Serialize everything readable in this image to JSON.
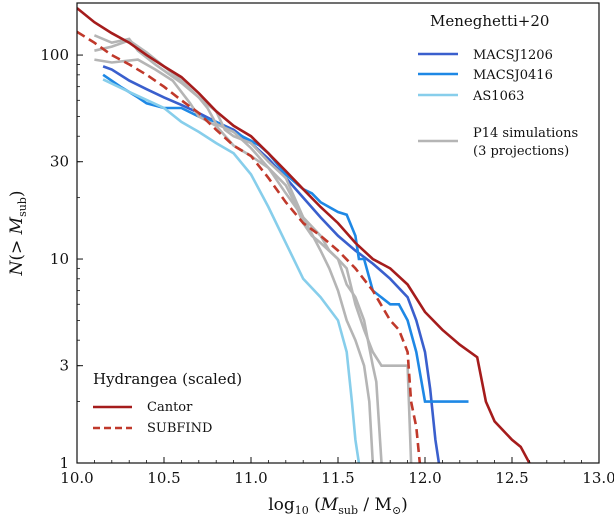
{
  "chart_data": {
    "type": "line",
    "title": "",
    "xlabel": "log₁₀ (M_sub / M⊙)",
    "ylabel": "N(> M_sub)",
    "xlim": [
      10.0,
      13.0
    ],
    "ylim": [
      1,
      180
    ],
    "yscale": "log",
    "grid": false,
    "x_ticks": [
      10.0,
      10.5,
      11.0,
      11.5,
      12.0,
      12.5,
      13.0
    ],
    "x_tick_labels": [
      "10.0",
      "10.5",
      "11.0",
      "11.5",
      "12.0",
      "12.5",
      "13.0"
    ],
    "y_ticks": [
      1,
      3,
      10,
      30,
      100
    ],
    "y_tick_labels": [
      "1",
      "3",
      "10",
      "30",
      "100"
    ],
    "legends": [
      {
        "title": "Meneghetti+20",
        "placement": "top-right",
        "entries": [
          "MACSJ1206",
          "MACSJ0416",
          "AS1063",
          "P14 simulations (3 projections)"
        ]
      },
      {
        "title": "Hydrangea (scaled)",
        "placement": "bottom-left",
        "entries": [
          "Cantor",
          "SUBFIND"
        ]
      }
    ],
    "series": [
      {
        "name": "MACSJ1206",
        "color": "#3a5fcd",
        "style": "solid",
        "points": [
          [
            10.15,
            88
          ],
          [
            10.2,
            85
          ],
          [
            10.3,
            75
          ],
          [
            10.4,
            68
          ],
          [
            10.5,
            62
          ],
          [
            10.6,
            57
          ],
          [
            10.7,
            52
          ],
          [
            10.8,
            47
          ],
          [
            10.9,
            43
          ],
          [
            11.0,
            37
          ],
          [
            11.1,
            31
          ],
          [
            11.2,
            25
          ],
          [
            11.3,
            20
          ],
          [
            11.4,
            16
          ],
          [
            11.5,
            13
          ],
          [
            11.6,
            11
          ],
          [
            11.7,
            9.5
          ],
          [
            11.8,
            8
          ],
          [
            11.9,
            6.5
          ],
          [
            11.95,
            5
          ],
          [
            12.0,
            3.5
          ],
          [
            12.03,
            2.3
          ],
          [
            12.06,
            1.3
          ],
          [
            12.08,
            1
          ]
        ]
      },
      {
        "name": "MACSJ0416",
        "color": "#1e88e5",
        "style": "solid",
        "points": [
          [
            10.15,
            80
          ],
          [
            10.25,
            70
          ],
          [
            10.35,
            62
          ],
          [
            10.4,
            58
          ],
          [
            10.5,
            55
          ],
          [
            10.6,
            55
          ],
          [
            10.7,
            50
          ],
          [
            10.8,
            47
          ],
          [
            10.9,
            42
          ],
          [
            11.0,
            38
          ],
          [
            11.05,
            36
          ],
          [
            11.1,
            33
          ],
          [
            11.2,
            26
          ],
          [
            11.3,
            22
          ],
          [
            11.35,
            21
          ],
          [
            11.4,
            19
          ],
          [
            11.5,
            17
          ],
          [
            11.55,
            16.5
          ],
          [
            11.6,
            13
          ],
          [
            11.62,
            10
          ],
          [
            11.65,
            10
          ],
          [
            11.7,
            7
          ],
          [
            11.8,
            6
          ],
          [
            11.85,
            6
          ],
          [
            11.9,
            5
          ],
          [
            11.95,
            3.5
          ],
          [
            12.0,
            2
          ],
          [
            12.25,
            2
          ]
        ]
      },
      {
        "name": "AS1063",
        "color": "#87ceeb",
        "style": "solid",
        "points": [
          [
            10.15,
            76
          ],
          [
            10.3,
            66
          ],
          [
            10.5,
            55
          ],
          [
            10.6,
            47
          ],
          [
            10.7,
            42
          ],
          [
            10.8,
            37
          ],
          [
            10.9,
            33
          ],
          [
            11.0,
            26
          ],
          [
            11.1,
            18
          ],
          [
            11.2,
            12
          ],
          [
            11.3,
            8
          ],
          [
            11.4,
            6.5
          ],
          [
            11.5,
            5
          ],
          [
            11.55,
            3.5
          ],
          [
            11.58,
            2
          ],
          [
            11.6,
            1.3
          ],
          [
            11.62,
            1
          ]
        ]
      },
      {
        "name": "P14 simulations (3 projections)",
        "color": "#b5b5b5",
        "style": "solid",
        "points": [
          [
            10.1,
            125
          ],
          [
            10.2,
            115
          ],
          [
            10.3,
            120
          ],
          [
            10.35,
            105
          ],
          [
            10.45,
            90
          ],
          [
            10.6,
            73
          ],
          [
            10.7,
            62
          ],
          [
            10.8,
            53
          ],
          [
            10.85,
            43
          ],
          [
            10.9,
            40
          ],
          [
            11.0,
            37
          ],
          [
            11.1,
            30
          ],
          [
            11.2,
            25
          ],
          [
            11.3,
            16
          ],
          [
            11.4,
            11
          ],
          [
            11.45,
            9
          ],
          [
            11.5,
            7
          ],
          [
            11.55,
            5
          ],
          [
            11.6,
            4
          ],
          [
            11.65,
            3
          ],
          [
            11.68,
            2
          ],
          [
            11.7,
            1
          ]
        ]
      },
      {
        "name": "",
        "color": "#b5b5b5",
        "style": "solid",
        "points": [
          [
            10.1,
            105
          ],
          [
            10.2,
            110
          ],
          [
            10.3,
            118
          ],
          [
            10.4,
            103
          ],
          [
            10.5,
            88
          ],
          [
            10.6,
            75
          ],
          [
            10.7,
            62
          ],
          [
            10.75,
            55
          ],
          [
            10.8,
            46
          ],
          [
            10.9,
            42
          ],
          [
            11.0,
            35
          ],
          [
            11.1,
            28
          ],
          [
            11.2,
            21
          ],
          [
            11.3,
            16
          ],
          [
            11.4,
            13
          ],
          [
            11.45,
            11
          ],
          [
            11.5,
            10
          ],
          [
            11.55,
            7.5
          ],
          [
            11.6,
            6.5
          ],
          [
            11.65,
            5
          ],
          [
            11.7,
            3
          ],
          [
            11.72,
            2.5
          ],
          [
            11.75,
            1
          ]
        ]
      },
      {
        "name": "",
        "color": "#b5b5b5",
        "style": "solid",
        "points": [
          [
            10.1,
            95
          ],
          [
            10.2,
            92
          ],
          [
            10.35,
            95
          ],
          [
            10.45,
            85
          ],
          [
            10.55,
            75
          ],
          [
            10.65,
            58
          ],
          [
            10.7,
            50
          ],
          [
            10.8,
            45
          ],
          [
            10.9,
            36
          ],
          [
            11.0,
            32
          ],
          [
            11.1,
            28
          ],
          [
            11.2,
            23
          ],
          [
            11.25,
            19
          ],
          [
            11.3,
            15
          ],
          [
            11.35,
            13
          ],
          [
            11.4,
            12
          ],
          [
            11.5,
            10
          ],
          [
            11.55,
            9
          ],
          [
            11.6,
            6
          ],
          [
            11.65,
            4.5
          ],
          [
            11.7,
            3.5
          ],
          [
            11.75,
            3
          ],
          [
            11.9,
            3
          ],
          [
            11.92,
            1
          ]
        ]
      },
      {
        "name": "Cantor",
        "color": "#a51c1c",
        "style": "solid",
        "points": [
          [
            10.0,
            170
          ],
          [
            10.1,
            145
          ],
          [
            10.2,
            128
          ],
          [
            10.3,
            115
          ],
          [
            10.4,
            100
          ],
          [
            10.5,
            88
          ],
          [
            10.6,
            78
          ],
          [
            10.7,
            65
          ],
          [
            10.8,
            53
          ],
          [
            10.9,
            45
          ],
          [
            11.0,
            40
          ],
          [
            11.1,
            33
          ],
          [
            11.2,
            27
          ],
          [
            11.3,
            22
          ],
          [
            11.4,
            18
          ],
          [
            11.5,
            15
          ],
          [
            11.6,
            12
          ],
          [
            11.7,
            10
          ],
          [
            11.8,
            9
          ],
          [
            11.9,
            7.5
          ],
          [
            12.0,
            5.5
          ],
          [
            12.1,
            4.5
          ],
          [
            12.2,
            3.8
          ],
          [
            12.3,
            3.3
          ],
          [
            12.35,
            2
          ],
          [
            12.4,
            1.6
          ],
          [
            12.5,
            1.3
          ],
          [
            12.55,
            1.2
          ],
          [
            12.6,
            1
          ]
        ]
      },
      {
        "name": "SUBFIND",
        "color": "#c0392b",
        "style": "dashed",
        "points": [
          [
            10.0,
            130
          ],
          [
            10.1,
            115
          ],
          [
            10.2,
            100
          ],
          [
            10.3,
            90
          ],
          [
            10.4,
            80
          ],
          [
            10.5,
            70
          ],
          [
            10.6,
            60
          ],
          [
            10.7,
            52
          ],
          [
            10.8,
            43
          ],
          [
            10.9,
            36
          ],
          [
            11.0,
            32
          ],
          [
            11.1,
            25
          ],
          [
            11.2,
            19
          ],
          [
            11.3,
            15
          ],
          [
            11.4,
            13
          ],
          [
            11.5,
            11
          ],
          [
            11.6,
            9
          ],
          [
            11.7,
            7
          ],
          [
            11.8,
            5
          ],
          [
            11.85,
            4.5
          ],
          [
            11.9,
            3.5
          ],
          [
            11.92,
            2
          ],
          [
            11.95,
            1.5
          ],
          [
            11.97,
            1
          ]
        ]
      }
    ]
  }
}
